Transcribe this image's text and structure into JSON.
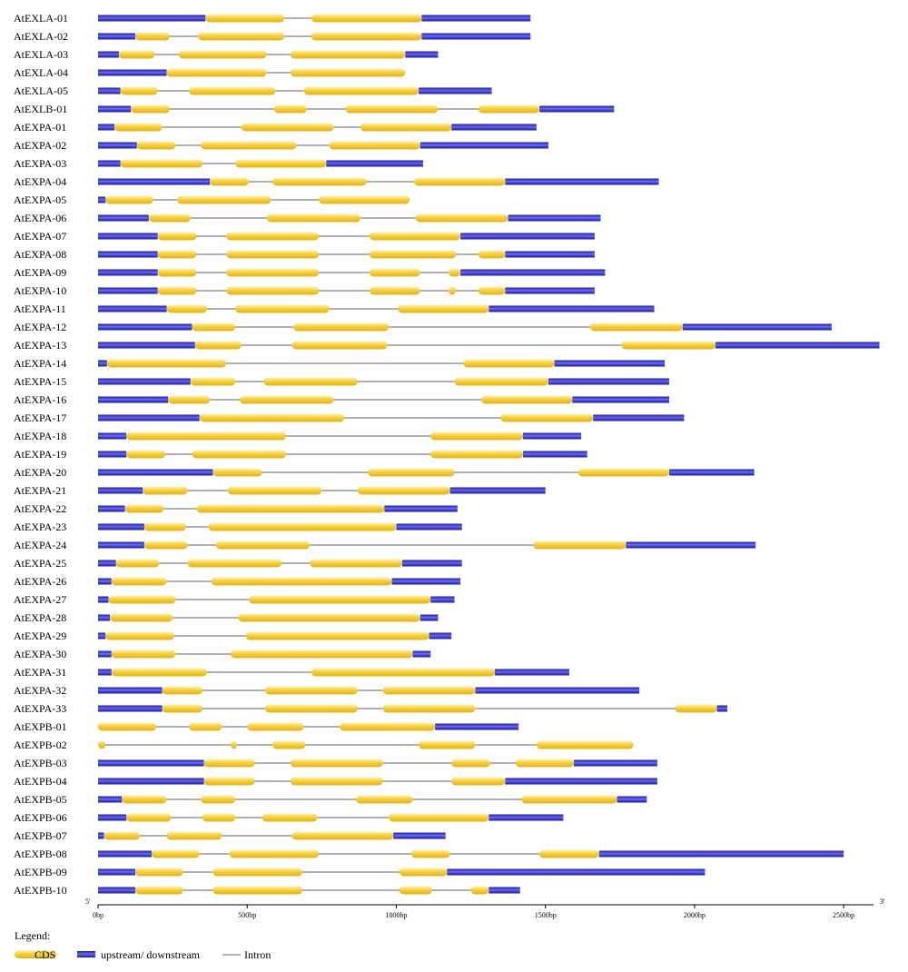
{
  "colors": {
    "cds": "#f5cf3e",
    "utr": "#2b2bc8",
    "intron": "#808080"
  },
  "scale": {
    "max_bp": 2600
  },
  "end_labels": {
    "five": "5'",
    "three": "3'"
  },
  "ticks": [
    {
      "value": 0,
      "label": "0bp"
    },
    {
      "value": 500,
      "label": "500bp"
    },
    {
      "value": 1000,
      "label": "1000bp"
    },
    {
      "value": 1500,
      "label": "1500bp"
    },
    {
      "value": 2000,
      "label": "2000bp"
    },
    {
      "value": 2500,
      "label": "2500bp"
    }
  ],
  "legend": {
    "title": "Legend:",
    "cds": "CDS",
    "utr": "upstream/ downstream",
    "intron": "Intron"
  },
  "genes": [
    {
      "name": "AtEXLA-01",
      "length": 1450,
      "utr": [
        [
          0,
          360
        ],
        [
          1085,
          1450
        ]
      ],
      "cds": [
        [
          360,
          625
        ],
        [
          715,
          1085
        ]
      ]
    },
    {
      "name": "AtEXLA-02",
      "length": 1450,
      "utr": [
        [
          0,
          125
        ],
        [
          1085,
          1450
        ]
      ],
      "cds": [
        [
          125,
          240
        ],
        [
          335,
          625
        ],
        [
          715,
          1085
        ]
      ]
    },
    {
      "name": "AtEXLA-03",
      "length": 1140,
      "utr": [
        [
          0,
          70
        ],
        [
          1030,
          1140
        ]
      ],
      "cds": [
        [
          70,
          190
        ],
        [
          270,
          565
        ],
        [
          645,
          1030
        ]
      ]
    },
    {
      "name": "AtEXLA-04",
      "length": 1030,
      "utr": [
        [
          0,
          230
        ]
      ],
      "cds": [
        [
          230,
          565
        ],
        [
          645,
          1030
        ]
      ]
    },
    {
      "name": "AtEXLA-05",
      "length": 1320,
      "utr": [
        [
          0,
          75
        ],
        [
          1075,
          1320
        ]
      ],
      "cds": [
        [
          75,
          200
        ],
        [
          305,
          595
        ],
        [
          690,
          1075
        ]
      ]
    },
    {
      "name": "AtEXLB-01",
      "length": 1730,
      "utr": [
        [
          0,
          110
        ],
        [
          1480,
          1730
        ]
      ],
      "cds": [
        [
          110,
          240
        ],
        [
          590,
          700
        ],
        [
          830,
          1140
        ],
        [
          1275,
          1480
        ]
      ]
    },
    {
      "name": "AtEXPA-01",
      "length": 1470,
      "utr": [
        [
          0,
          55
        ],
        [
          1185,
          1470
        ]
      ],
      "cds": [
        [
          55,
          215
        ],
        [
          480,
          790
        ],
        [
          880,
          1185
        ]
      ]
    },
    {
      "name": "AtEXPA-02",
      "length": 1510,
      "utr": [
        [
          0,
          130
        ],
        [
          1080,
          1510
        ]
      ],
      "cds": [
        [
          130,
          260
        ],
        [
          345,
          665
        ],
        [
          775,
          1080
        ]
      ]
    },
    {
      "name": "AtEXPA-03",
      "length": 1090,
      "utr": [
        [
          0,
          75
        ],
        [
          765,
          1090
        ]
      ],
      "cds": [
        [
          75,
          350
        ],
        [
          460,
          765
        ]
      ]
    },
    {
      "name": "AtEXPA-04",
      "length": 1880,
      "utr": [
        [
          0,
          375
        ],
        [
          1365,
          1880
        ]
      ],
      "cds": [
        [
          375,
          505
        ],
        [
          585,
          900
        ],
        [
          1060,
          1365
        ]
      ]
    },
    {
      "name": "AtEXPA-05",
      "length": 1045,
      "utr": [
        [
          0,
          25
        ]
      ],
      "cds": [
        [
          25,
          185
        ],
        [
          265,
          580
        ],
        [
          740,
          1045
        ]
      ]
    },
    {
      "name": "AtEXPA-06",
      "length": 1685,
      "utr": [
        [
          0,
          170
        ],
        [
          1375,
          1685
        ]
      ],
      "cds": [
        [
          170,
          310
        ],
        [
          565,
          880
        ],
        [
          1065,
          1375
        ]
      ]
    },
    {
      "name": "AtEXPA-07",
      "length": 1665,
      "utr": [
        [
          0,
          200
        ],
        [
          1215,
          1665
        ]
      ],
      "cds": [
        [
          200,
          330
        ],
        [
          430,
          740
        ],
        [
          910,
          1215
        ]
      ]
    },
    {
      "name": "AtEXPA-08",
      "length": 1665,
      "utr": [
        [
          0,
          200
        ],
        [
          1365,
          1665
        ]
      ],
      "cds": [
        [
          200,
          330
        ],
        [
          430,
          740
        ],
        [
          910,
          1200
        ],
        [
          1275,
          1365
        ]
      ]
    },
    {
      "name": "AtEXPA-09",
      "length": 1700,
      "utr": [
        [
          0,
          200
        ],
        [
          1215,
          1700
        ]
      ],
      "cds": [
        [
          200,
          330
        ],
        [
          430,
          740
        ],
        [
          910,
          1080
        ],
        [
          1175,
          1215
        ]
      ]
    },
    {
      "name": "AtEXPA-10",
      "length": 1665,
      "utr": [
        [
          0,
          200
        ],
        [
          1365,
          1665
        ]
      ],
      "cds": [
        [
          200,
          330
        ],
        [
          430,
          740
        ],
        [
          910,
          1080
        ],
        [
          1175,
          1200
        ],
        [
          1275,
          1365
        ]
      ]
    },
    {
      "name": "AtEXPA-11",
      "length": 1865,
      "utr": [
        [
          0,
          230
        ],
        [
          1310,
          1865
        ]
      ],
      "cds": [
        [
          230,
          365
        ],
        [
          460,
          775
        ],
        [
          1005,
          1310
        ]
      ]
    },
    {
      "name": "AtEXPA-12",
      "length": 2460,
      "utr": [
        [
          0,
          315
        ],
        [
          1960,
          2460
        ]
      ],
      "cds": [
        [
          315,
          460
        ],
        [
          655,
          975
        ],
        [
          1650,
          1960
        ]
      ]
    },
    {
      "name": "AtEXPA-13",
      "length": 2620,
      "utr": [
        [
          0,
          325
        ],
        [
          2070,
          2620
        ]
      ],
      "cds": [
        [
          325,
          480
        ],
        [
          650,
          970
        ],
        [
          1755,
          2070
        ]
      ]
    },
    {
      "name": "AtEXPA-14",
      "length": 1900,
      "utr": [
        [
          0,
          30
        ],
        [
          1530,
          1900
        ]
      ],
      "cds": [
        [
          30,
          430
        ],
        [
          1225,
          1530
        ]
      ]
    },
    {
      "name": "AtEXPA-15",
      "length": 1915,
      "utr": [
        [
          0,
          310
        ],
        [
          1510,
          1915
        ]
      ],
      "cds": [
        [
          310,
          460
        ],
        [
          555,
          870
        ],
        [
          1195,
          1510
        ]
      ]
    },
    {
      "name": "AtEXPA-16",
      "length": 1915,
      "utr": [
        [
          0,
          235
        ],
        [
          1590,
          1915
        ]
      ],
      "cds": [
        [
          235,
          375
        ],
        [
          475,
          790
        ],
        [
          1285,
          1590
        ]
      ]
    },
    {
      "name": "AtEXPA-17",
      "length": 1965,
      "utr": [
        [
          0,
          340
        ],
        [
          1660,
          1965
        ]
      ],
      "cds": [
        [
          340,
          825
        ],
        [
          1350,
          1660
        ]
      ]
    },
    {
      "name": "AtEXPA-18",
      "length": 1620,
      "utr": [
        [
          0,
          95
        ],
        [
          1425,
          1620
        ]
      ],
      "cds": [
        [
          95,
          630
        ],
        [
          1115,
          1425
        ]
      ]
    },
    {
      "name": "AtEXPA-19",
      "length": 1640,
      "utr": [
        [
          0,
          95
        ],
        [
          1425,
          1640
        ]
      ],
      "cds": [
        [
          95,
          225
        ],
        [
          315,
          630
        ],
        [
          1115,
          1425
        ]
      ]
    },
    {
      "name": "AtEXPA-20",
      "length": 2200,
      "utr": [
        [
          0,
          385
        ],
        [
          1915,
          2200
        ]
      ],
      "cds": [
        [
          385,
          550
        ],
        [
          905,
          1195
        ],
        [
          1610,
          1915
        ]
      ]
    },
    {
      "name": "AtEXPA-21",
      "length": 1500,
      "utr": [
        [
          0,
          150
        ],
        [
          1180,
          1500
        ]
      ],
      "cds": [
        [
          150,
          300
        ],
        [
          435,
          750
        ],
        [
          870,
          1180
        ]
      ]
    },
    {
      "name": "AtEXPA-22",
      "length": 1205,
      "utr": [
        [
          0,
          90
        ],
        [
          960,
          1205
        ]
      ],
      "cds": [
        [
          90,
          220
        ],
        [
          330,
          960
        ]
      ]
    },
    {
      "name": "AtEXPA-23",
      "length": 1220,
      "utr": [
        [
          0,
          155
        ],
        [
          1000,
          1220
        ]
      ],
      "cds": [
        [
          155,
          295
        ],
        [
          370,
          1000
        ]
      ]
    },
    {
      "name": "AtEXPA-24",
      "length": 2205,
      "utr": [
        [
          0,
          155
        ],
        [
          1770,
          2205
        ]
      ],
      "cds": [
        [
          155,
          300
        ],
        [
          395,
          710
        ],
        [
          1460,
          1770
        ]
      ]
    },
    {
      "name": "AtEXPA-25",
      "length": 1220,
      "utr": [
        [
          0,
          60
        ],
        [
          1020,
          1220
        ]
      ],
      "cds": [
        [
          60,
          205
        ],
        [
          300,
          615
        ],
        [
          710,
          1020
        ]
      ]
    },
    {
      "name": "AtEXPA-26",
      "length": 1215,
      "utr": [
        [
          0,
          45
        ],
        [
          985,
          1215
        ]
      ],
      "cds": [
        [
          45,
          230
        ],
        [
          380,
          985
        ]
      ]
    },
    {
      "name": "AtEXPA-27",
      "length": 1195,
      "utr": [
        [
          0,
          35
        ],
        [
          1115,
          1195
        ]
      ],
      "cds": [
        [
          35,
          260
        ],
        [
          505,
          1115
        ]
      ]
    },
    {
      "name": "AtEXPA-28",
      "length": 1140,
      "utr": [
        [
          0,
          40
        ],
        [
          1080,
          1140
        ]
      ],
      "cds": [
        [
          40,
          250
        ],
        [
          470,
          1080
        ]
      ]
    },
    {
      "name": "AtEXPA-29",
      "length": 1185,
      "utr": [
        [
          0,
          25
        ],
        [
          1110,
          1185
        ]
      ],
      "cds": [
        [
          25,
          255
        ],
        [
          495,
          1110
        ]
      ]
    },
    {
      "name": "AtEXPA-30",
      "length": 1115,
      "utr": [
        [
          0,
          45
        ],
        [
          1055,
          1115
        ]
      ],
      "cds": [
        [
          45,
          260
        ],
        [
          445,
          1055
        ]
      ]
    },
    {
      "name": "AtEXPA-31",
      "length": 1580,
      "utr": [
        [
          0,
          45
        ],
        [
          1330,
          1580
        ]
      ],
      "cds": [
        [
          45,
          365
        ],
        [
          715,
          1330
        ]
      ]
    },
    {
      "name": "AtEXPA-32",
      "length": 1815,
      "utr": [
        [
          0,
          215
        ],
        [
          1265,
          1815
        ]
      ],
      "cds": [
        [
          215,
          350
        ],
        [
          560,
          870
        ],
        [
          955,
          1265
        ]
      ]
    },
    {
      "name": "AtEXPA-33",
      "length": 2110,
      "utr": [
        [
          0,
          215
        ],
        [
          2075,
          2110
        ]
      ],
      "cds": [
        [
          215,
          350
        ],
        [
          560,
          870
        ],
        [
          955,
          1265
        ],
        [
          1935,
          2075
        ]
      ]
    },
    {
      "name": "AtEXPB-01",
      "length": 1410,
      "utr": [
        [
          1130,
          1410
        ]
      ],
      "cds": [
        [
          0,
          195
        ],
        [
          305,
          415
        ],
        [
          500,
          690
        ],
        [
          810,
          1130
        ]
      ]
    },
    {
      "name": "AtEXPB-02",
      "length": 1795,
      "utr": [],
      "cds": [
        [
          0,
          25
        ],
        [
          445,
          465
        ],
        [
          585,
          695
        ],
        [
          1075,
          1265
        ],
        [
          1470,
          1795
        ]
      ]
    },
    {
      "name": "AtEXPB-03",
      "length": 1875,
      "utr": [
        [
          0,
          355
        ],
        [
          1595,
          1875
        ]
      ],
      "cds": [
        [
          355,
          525
        ],
        [
          645,
          955
        ],
        [
          1185,
          1315
        ],
        [
          1400,
          1595
        ]
      ]
    },
    {
      "name": "AtEXPB-04",
      "length": 1875,
      "utr": [
        [
          0,
          355
        ],
        [
          1365,
          1875
        ]
      ],
      "cds": [
        [
          355,
          525
        ],
        [
          645,
          955
        ],
        [
          1185,
          1365
        ]
      ]
    },
    {
      "name": "AtEXPB-05",
      "length": 1840,
      "utr": [
        [
          0,
          80
        ],
        [
          1740,
          1840
        ]
      ],
      "cds": [
        [
          80,
          230
        ],
        [
          345,
          460
        ],
        [
          865,
          1055
        ],
        [
          1420,
          1740
        ]
      ]
    },
    {
      "name": "AtEXPB-06",
      "length": 1560,
      "utr": [
        [
          0,
          95
        ],
        [
          1310,
          1560
        ]
      ],
      "cds": [
        [
          95,
          245
        ],
        [
          350,
          460
        ],
        [
          550,
          735
        ],
        [
          975,
          1310
        ]
      ]
    },
    {
      "name": "AtEXPB-07",
      "length": 1165,
      "utr": [
        [
          0,
          20
        ],
        [
          990,
          1165
        ]
      ],
      "cds": [
        [
          20,
          140
        ],
        [
          230,
          415
        ],
        [
          650,
          990
        ]
      ]
    },
    {
      "name": "AtEXPB-08",
      "length": 2500,
      "utr": [
        [
          0,
          180
        ],
        [
          1680,
          2500
        ]
      ],
      "cds": [
        [
          180,
          340
        ],
        [
          440,
          740
        ],
        [
          1050,
          1180
        ],
        [
          1480,
          1680
        ]
      ]
    },
    {
      "name": "AtEXPB-09",
      "length": 2035,
      "utr": [
        [
          0,
          125
        ],
        [
          1170,
          2035
        ]
      ],
      "cds": [
        [
          125,
          285
        ],
        [
          385,
          685
        ],
        [
          1010,
          1170
        ]
      ]
    },
    {
      "name": "AtEXPB-10",
      "length": 1415,
      "utr": [
        [
          0,
          125
        ],
        [
          1310,
          1415
        ]
      ],
      "cds": [
        [
          125,
          285
        ],
        [
          385,
          685
        ],
        [
          1010,
          1120
        ],
        [
          1250,
          1310
        ]
      ]
    }
  ]
}
